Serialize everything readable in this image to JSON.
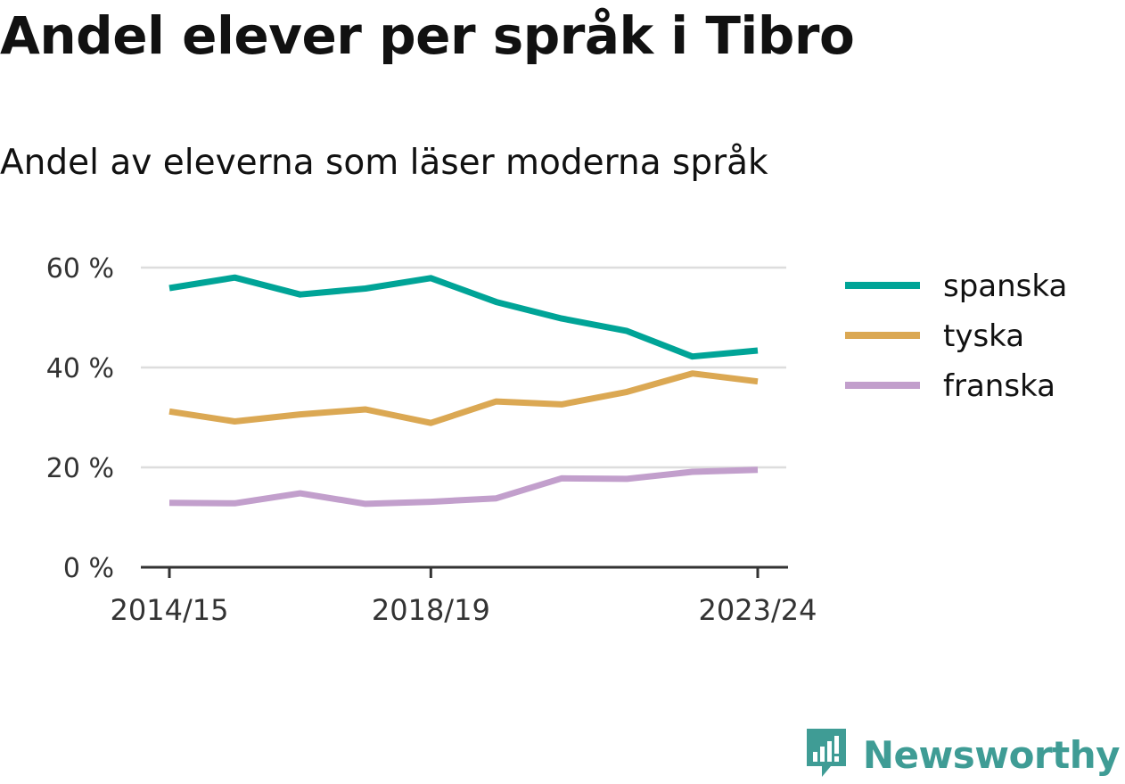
{
  "title": "Andel elever per språk i Tibro",
  "subtitle": "Andel av eleverna som läser moderna språk",
  "brand": {
    "name": "Newsworthy",
    "icon": "newsworthy-logo-icon",
    "color": "#3f9c95"
  },
  "chart_data": {
    "type": "line",
    "title": "Andel elever per språk i Tibro",
    "subtitle": "Andel av eleverna som läser moderna språk",
    "x": [
      "2014/15",
      "2015/16",
      "2016/17",
      "2017/18",
      "2018/19",
      "2019/20",
      "2020/21",
      "2021/22",
      "2022/23",
      "2023/24"
    ],
    "x_tick_labels": [
      "2014/15",
      "2018/19",
      "2023/24"
    ],
    "y_ticks": [
      0,
      20,
      40,
      60
    ],
    "y_tick_labels": [
      "0 %",
      "20 %",
      "40 %",
      "60 %"
    ],
    "ylim": [
      0,
      60
    ],
    "grid": true,
    "legend_position": "right",
    "series": [
      {
        "name": "spanska",
        "color": "#00a497",
        "values": [
          55.9,
          58.0,
          54.6,
          55.8,
          57.9,
          53.1,
          49.8,
          47.3,
          42.2,
          43.4
        ]
      },
      {
        "name": "tyska",
        "color": "#dba853",
        "values": [
          31.2,
          29.2,
          30.6,
          31.6,
          28.9,
          33.2,
          32.6,
          35.1,
          38.8,
          37.2
        ]
      },
      {
        "name": "franska",
        "color": "#c29fcc",
        "values": [
          12.9,
          12.8,
          14.8,
          12.7,
          13.1,
          13.8,
          17.8,
          17.7,
          19.1,
          19.5
        ]
      }
    ]
  }
}
